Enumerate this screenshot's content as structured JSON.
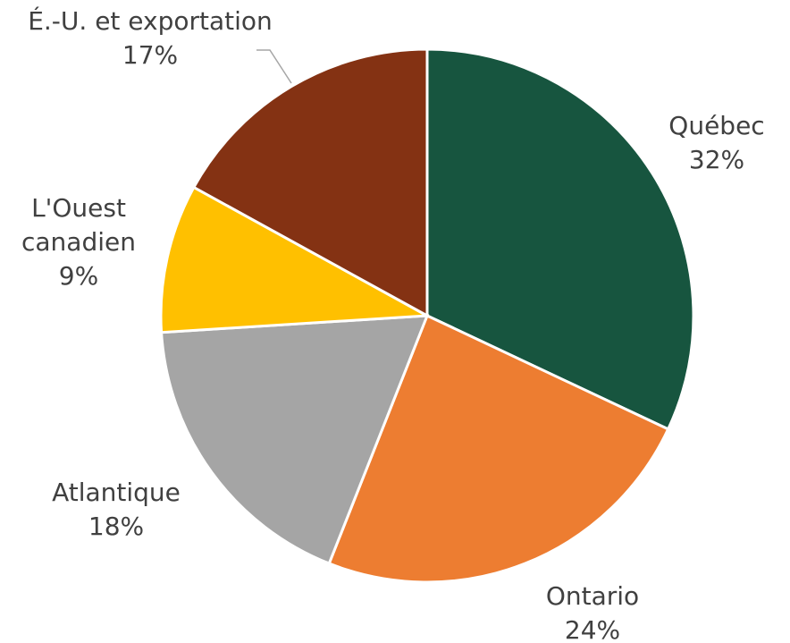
{
  "chart_data": {
    "type": "pie",
    "title": "",
    "slices": [
      {
        "label_lines": [
          "Québec"
        ],
        "percent_label": "32%",
        "value": 32,
        "color": "#17553f"
      },
      {
        "label_lines": [
          "Ontario"
        ],
        "percent_label": "24%",
        "value": 24,
        "color": "#ed7d31"
      },
      {
        "label_lines": [
          "Atlantique"
        ],
        "percent_label": "18%",
        "value": 18,
        "color": "#a5a5a5"
      },
      {
        "label_lines": [
          "L'Ouest",
          "canadien"
        ],
        "percent_label": "9%",
        "value": 9,
        "color": "#ffc000"
      },
      {
        "label_lines": [
          "É.-U. et exportation"
        ],
        "percent_label": "17%",
        "value": 17,
        "color": "#843213"
      }
    ],
    "start_angle_deg": 0,
    "direction": "clockwise",
    "legend": "none",
    "data_labels": "outside, category and percent"
  }
}
